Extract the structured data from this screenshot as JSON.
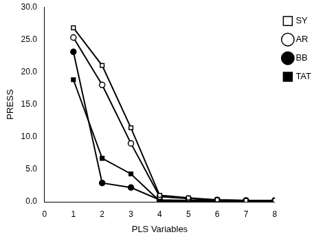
{
  "chart_data": {
    "type": "line",
    "x_label": "PLS Variables",
    "y_label": "PRESS",
    "x": [
      1,
      2,
      3,
      4,
      5,
      6,
      7,
      8
    ],
    "series": [
      {
        "name": "SY",
        "color": "#000000",
        "marker": "open_square",
        "values": [
          26.8,
          21.0,
          11.4,
          1.0,
          0.6,
          0.3,
          0.2,
          0.2
        ]
      },
      {
        "name": "AR",
        "color": "#000000",
        "marker": "open_circle",
        "values": [
          25.3,
          18.0,
          9.0,
          0.8,
          0.5,
          0.3,
          0.2,
          0.2
        ]
      },
      {
        "name": "BB",
        "color": "#000000",
        "marker": "circle",
        "values": [
          23.1,
          2.9,
          2.2,
          0.3,
          0.2,
          0.2,
          0.1,
          0.1
        ]
      },
      {
        "name": "TAT",
        "color": "#000000",
        "marker": "square",
        "values": [
          18.8,
          6.7,
          4.3,
          0.1,
          0.1,
          0.1,
          0.1,
          0.1
        ]
      }
    ],
    "xlim": [
      0,
      8
    ],
    "xticks": [
      0,
      1,
      2,
      3,
      4,
      5,
      6,
      7,
      8
    ],
    "ylim": [
      0,
      30
    ],
    "yticks": [
      {
        "value": 0,
        "label": "0.0"
      },
      {
        "value": 5,
        "label": "5.0"
      },
      {
        "value": 10,
        "label": "10.0"
      },
      {
        "value": 15,
        "label": "15.0"
      },
      {
        "value": 20,
        "label": "20.0"
      },
      {
        "value": 25,
        "label": "25.0"
      },
      {
        "value": 30,
        "label": "30.0"
      }
    ],
    "grid": false,
    "legend": "right"
  }
}
